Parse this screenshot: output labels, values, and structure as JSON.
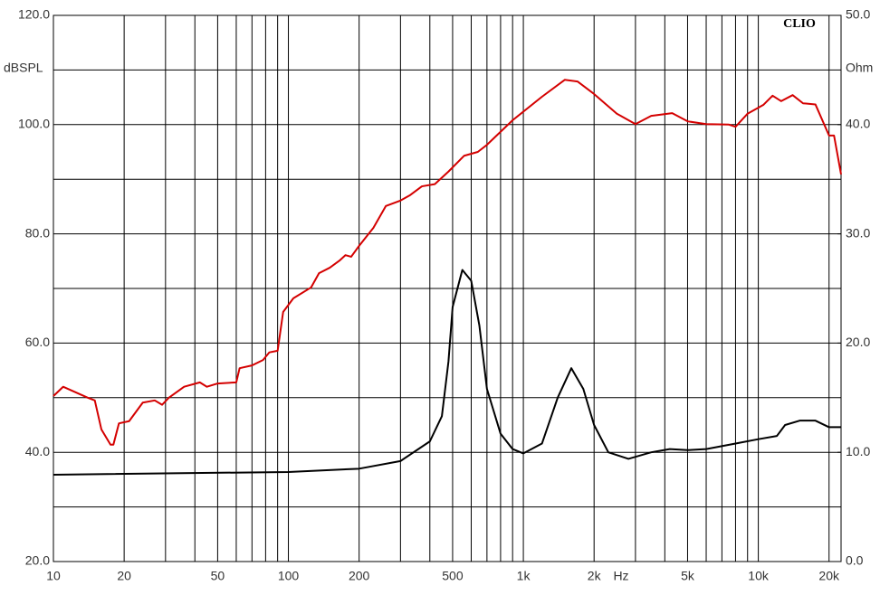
{
  "chart_data": {
    "type": "line",
    "brand": "CLIO",
    "ylabel": "dBSPL",
    "y2label": "Ohm",
    "xlabel": "Hz",
    "log_x": true,
    "grid": true,
    "xlim": [
      10,
      22500
    ],
    "xticks": [
      10,
      20,
      50,
      100,
      200,
      500,
      {
        "value": 1000,
        "label": "1k"
      },
      {
        "value": 2000,
        "label": "2k"
      },
      {
        "value": 5000,
        "label": "5k"
      },
      {
        "value": 10000,
        "label": "10k"
      },
      {
        "value": 20000,
        "label": "20k"
      }
    ],
    "xminor": [
      30,
      40,
      60,
      70,
      80,
      90,
      300,
      400,
      600,
      700,
      800,
      900,
      3000,
      4000,
      6000,
      7000,
      8000,
      9000
    ],
    "ylim": [
      20,
      120
    ],
    "yticks": [
      {
        "value": 20,
        "label": "20.0"
      },
      {
        "value": 40,
        "label": "40.0"
      },
      {
        "value": 60,
        "label": "60.0"
      },
      {
        "value": 80,
        "label": "80.0"
      },
      {
        "value": 100,
        "label": "100.0"
      },
      {
        "value": 120,
        "label": "120.0"
      }
    ],
    "yminor": [
      30,
      50,
      70,
      90,
      110
    ],
    "y2lim": [
      0,
      50
    ],
    "y2ticks": [
      {
        "value": 0,
        "label": "0.0"
      },
      {
        "value": 10,
        "label": "10.0"
      },
      {
        "value": 20,
        "label": "20.0"
      },
      {
        "value": 30,
        "label": "30.0"
      },
      {
        "value": 40,
        "label": "40.0"
      },
      {
        "value": 50,
        "label": "50.0"
      }
    ],
    "series": [
      {
        "color": "#d40000",
        "axis": "y",
        "x": [
          10,
          11,
          14,
          15,
          16,
          17.5,
          18,
          19,
          21,
          24,
          27,
          29,
          31,
          36,
          42,
          45,
          50,
          60,
          62,
          70,
          78,
          83,
          90,
          95,
          105,
          125,
          135,
          150,
          165,
          175,
          185,
          200,
          230,
          260,
          300,
          330,
          370,
          420,
          480,
          560,
          640,
          700,
          900,
          1200,
          1500,
          1700,
          2000,
          2500,
          3000,
          3500,
          4300,
          5000,
          6000,
          7500,
          8000,
          9000,
          10500,
          11500,
          12500,
          14000,
          15500,
          17500,
          20000,
          21000,
          22500
        ],
        "values": [
          50.3,
          52.0,
          50.0,
          49.5,
          44.2,
          41.4,
          41.4,
          45.3,
          45.7,
          49.1,
          49.5,
          48.7,
          50.0,
          52.0,
          52.8,
          52.0,
          52.6,
          52.8,
          55.4,
          55.9,
          56.9,
          58.3,
          58.6,
          65.7,
          68.2,
          70.2,
          72.8,
          73.8,
          75.1,
          76.1,
          75.8,
          77.8,
          81.1,
          85.1,
          86.1,
          87.1,
          88.7,
          89.1,
          91.4,
          94.3,
          95.0,
          96.3,
          100.8,
          105.1,
          108.2,
          107.9,
          105.6,
          102.0,
          100.1,
          101.6,
          102.1,
          100.6,
          100.1,
          100.0,
          99.6,
          102.0,
          103.6,
          105.3,
          104.3,
          105.4,
          103.9,
          103.7,
          98.0,
          98.0,
          90.9
        ]
      },
      {
        "color": "#000000",
        "axis": "y2",
        "x": [
          10,
          100,
          200,
          300,
          400,
          450,
          480,
          500,
          550,
          600,
          650,
          700,
          800,
          900,
          1000,
          1200,
          1400,
          1600,
          1800,
          2000,
          2300,
          2800,
          3500,
          4200,
          5000,
          6000,
          8000,
          10000,
          12000,
          13000,
          15000,
          17500,
          20000,
          22500
        ],
        "values": [
          7.95,
          8.2,
          8.5,
          9.2,
          11.0,
          13.3,
          18.3,
          23.3,
          26.7,
          25.7,
          21.6,
          15.8,
          11.7,
          10.3,
          9.9,
          10.8,
          15.0,
          17.7,
          15.8,
          12.5,
          10.0,
          9.4,
          10.0,
          10.3,
          10.2,
          10.3,
          10.8,
          11.2,
          11.5,
          12.5,
          12.9,
          12.9,
          12.3,
          12.3
        ]
      }
    ]
  }
}
